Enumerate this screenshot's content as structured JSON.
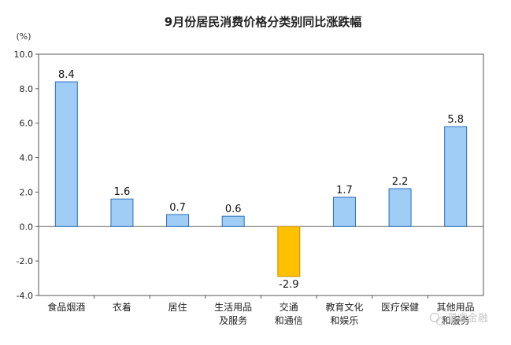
{
  "chart_data": {
    "type": "bar",
    "title": "9月份居民消费价格分类别同比涨跌幅",
    "unit_label": "(%)",
    "categories": [
      [
        "食品烟酒"
      ],
      [
        "衣着"
      ],
      [
        "居住"
      ],
      [
        "生活用品",
        "及服务"
      ],
      [
        "交通",
        "和通信"
      ],
      [
        "教育文化",
        "和娱乐"
      ],
      [
        "医疗保健"
      ],
      [
        "其他用品",
        "和服务"
      ]
    ],
    "values": [
      8.4,
      1.6,
      0.7,
      0.6,
      -2.9,
      1.7,
      2.2,
      5.8
    ],
    "value_labels": [
      "8.4",
      "1.6",
      "0.7",
      "0.6",
      "-2.9",
      "1.7",
      "2.2",
      "5.8"
    ],
    "ylim": [
      -4.0,
      10.0
    ],
    "yticks": [
      10.0,
      8.0,
      6.0,
      4.0,
      2.0,
      0.0,
      -2.0,
      -4.0
    ],
    "ytick_labels": [
      "10.0",
      "8.0",
      "6.0",
      "4.0",
      "2.0",
      "0.0",
      "-2.0",
      "-4.0"
    ],
    "grid": false,
    "colors": {
      "positive_fill": "#9fcdf6",
      "positive_stroke": "#2d6fb6",
      "negative_fill": "#ffc000",
      "negative_stroke": "#c98f00"
    }
  },
  "watermark": {
    "icon": "wechat-icon",
    "text": "星睿金融"
  }
}
